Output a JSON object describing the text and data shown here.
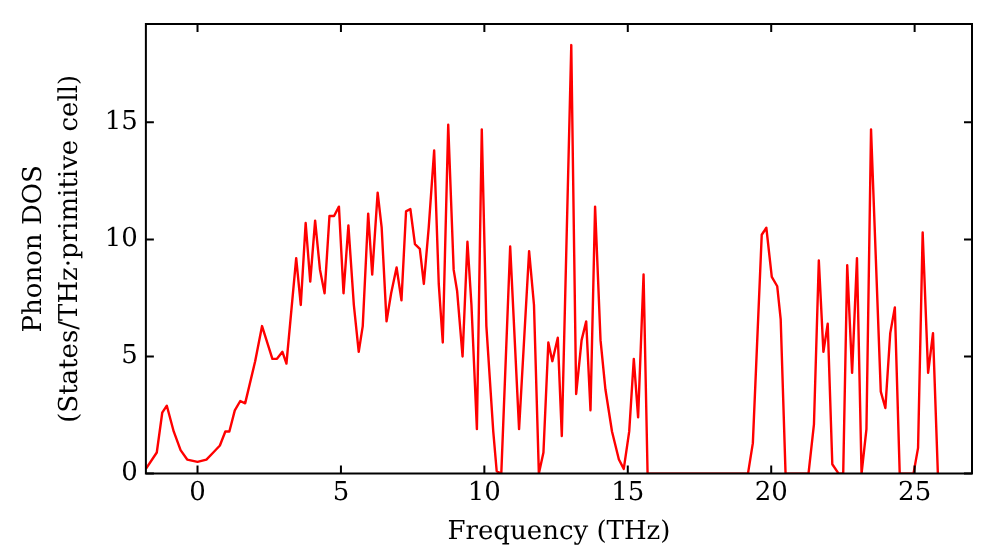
{
  "chart_data": {
    "type": "line",
    "xlabel": "Frequency (THz)",
    "ylabel": "Phonon DOS\n(States/THz·primitive cell)",
    "xlim": [
      -1.8,
      27
    ],
    "ylim": [
      0,
      19.2
    ],
    "xticks": [
      0,
      5,
      10,
      15,
      20,
      25
    ],
    "yticks": [
      0,
      5,
      10,
      15
    ],
    "marker": "none",
    "line_style": "solid",
    "legend": false,
    "series": [
      {
        "color": "#ff0000",
        "x": [
          -1.8,
          -1.42,
          -1.23,
          -1.07,
          -0.83,
          -0.59,
          -0.36,
          0,
          0.31,
          0.55,
          0.78,
          0.97,
          1.11,
          1.3,
          1.49,
          1.66,
          2.01,
          2.25,
          2.61,
          2.77,
          2.96,
          3.1,
          3.44,
          3.6,
          3.77,
          3.93,
          4.1,
          4.27,
          4.43,
          4.6,
          4.76,
          4.93,
          5.09,
          5.26,
          5.45,
          5.62,
          5.76,
          5.95,
          6.09,
          6.28,
          6.42,
          6.59,
          6.75,
          6.94,
          7.11,
          7.27,
          7.42,
          7.58,
          7.75,
          7.89,
          8.06,
          8.25,
          8.41,
          8.55,
          8.74,
          8.93,
          9.05,
          9.24,
          9.41,
          9.55,
          9.74,
          9.91,
          10.07,
          10.31,
          10.43,
          10.59,
          10.9,
          11.21,
          11.56,
          11.73,
          11.9,
          12.06,
          12.23,
          12.37,
          12.56,
          12.7,
          13.03,
          13.2,
          13.39,
          13.55,
          13.7,
          13.86,
          14.05,
          14.22,
          14.45,
          14.69,
          14.86,
          15.05,
          15.21,
          15.36,
          15.55,
          15.69,
          19.19,
          19.36,
          19.67,
          19.83,
          20.02,
          20.21,
          20.33,
          20.5,
          21.3,
          21.49,
          21.66,
          21.82,
          21.97,
          22.13,
          22.35,
          22.51,
          22.65,
          22.82,
          22.99,
          23.15,
          23.32,
          23.48,
          23.82,
          23.98,
          24.15,
          24.31,
          24.48,
          24.96,
          25.12,
          25.28,
          25.47,
          25.64,
          25.81
        ],
        "values": [
          0.2,
          0.9,
          2.6,
          2.9,
          1.8,
          1,
          0.6,
          0.5,
          0.6,
          0.9,
          1.2,
          1.8,
          1.8,
          2.7,
          3.1,
          3,
          4.8,
          6.3,
          4.9,
          4.9,
          5.2,
          4.7,
          9.2,
          7.2,
          10.7,
          8.2,
          10.8,
          8.7,
          7.7,
          11,
          11,
          11.4,
          7.7,
          10.6,
          7.2,
          5.2,
          6.3,
          11.1,
          8.5,
          12,
          10.5,
          6.5,
          7.7,
          8.8,
          7.4,
          11.2,
          11.3,
          9.8,
          9.6,
          8.1,
          10.5,
          13.8,
          8.1,
          5.6,
          14.9,
          8.7,
          7.8,
          5,
          9.9,
          7.2,
          1.9,
          14.7,
          6.3,
          1.8,
          0.1,
          0,
          9.7,
          1.9,
          9.5,
          7.2,
          0,
          0.9,
          5.6,
          4.8,
          5.8,
          1.6,
          18.3,
          3.4,
          5.7,
          6.5,
          2.7,
          11.4,
          5.7,
          3.6,
          1.8,
          0.6,
          0.2,
          1.8,
          4.9,
          2.4,
          8.5,
          0,
          0,
          1.3,
          10.2,
          10.5,
          8.4,
          8,
          6.6,
          0,
          0,
          2.1,
          9.1,
          5.2,
          6.4,
          0.4,
          0,
          0,
          8.9,
          4.3,
          9.2,
          0,
          1.9,
          14.7,
          3.5,
          2.8,
          6,
          7.1,
          0,
          0,
          1.1,
          10.3,
          4.3,
          6,
          0
        ]
      }
    ]
  }
}
